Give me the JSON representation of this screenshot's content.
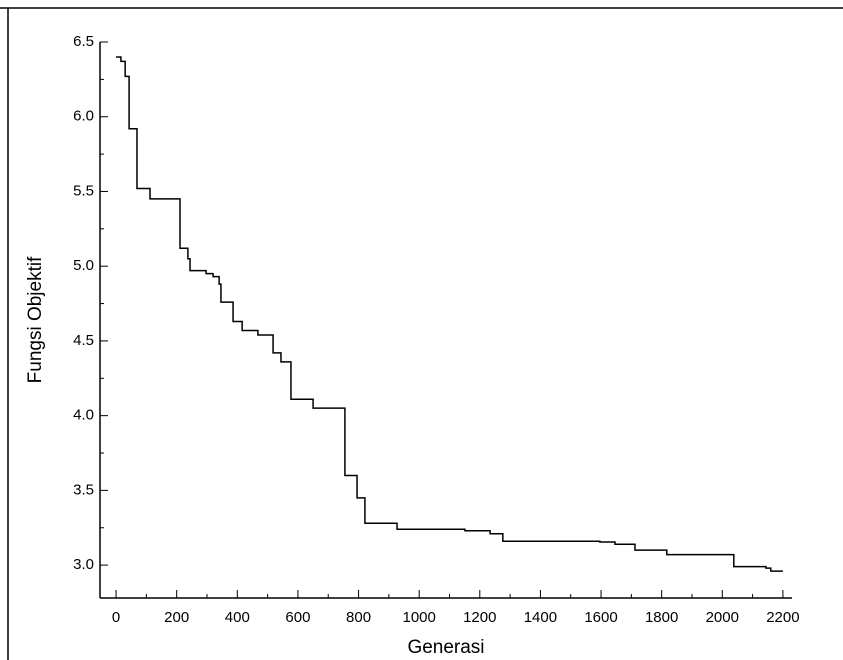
{
  "chart_data": {
    "type": "line",
    "step": true,
    "color": "#000000",
    "x_label": "Generasi",
    "y_label": "Fungsi Objektif",
    "x": [
      0,
      16,
      30,
      43,
      69,
      112,
      211,
      237,
      244,
      297,
      320,
      340,
      346,
      386,
      416,
      468,
      518,
      544,
      577,
      650,
      755,
      795,
      821,
      927,
      1151,
      1234,
      1276,
      1596,
      1646,
      1712,
      1817,
      2038,
      2144,
      2160,
      2200
    ],
    "values": [
      6.4,
      6.37,
      6.27,
      5.92,
      5.52,
      5.45,
      5.12,
      5.05,
      4.97,
      4.95,
      4.93,
      4.88,
      4.76,
      4.63,
      4.57,
      4.54,
      4.42,
      4.36,
      4.11,
      4.05,
      3.6,
      3.45,
      3.28,
      3.24,
      3.23,
      3.21,
      3.16,
      3.155,
      3.14,
      3.1,
      3.07,
      2.99,
      2.98,
      2.96,
      2.96
    ],
    "xlim": [
      -53,
      2230
    ],
    "ylim": [
      2.78,
      6.5
    ],
    "xticks": [
      0,
      200,
      400,
      600,
      800,
      1000,
      1200,
      1400,
      1600,
      1800,
      2000,
      2200
    ],
    "yticks": [
      {
        "value": 3,
        "label": "3.0"
      },
      3.5,
      {
        "value": 4,
        "label": "4.0"
      },
      4.5,
      {
        "value": 5,
        "label": "5.0"
      },
      5.5,
      {
        "value": 6,
        "label": "6.0"
      },
      6.5
    ]
  }
}
